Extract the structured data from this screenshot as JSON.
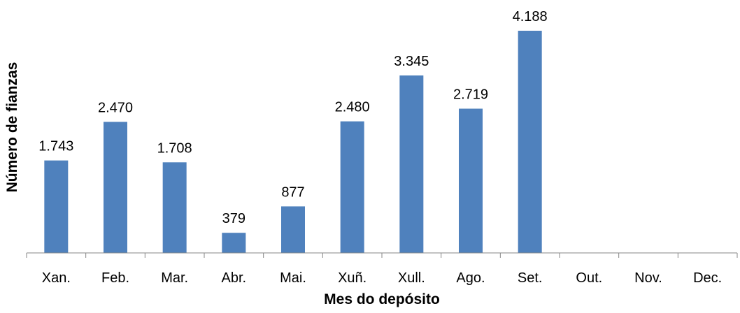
{
  "chart_data": {
    "type": "bar",
    "title": "",
    "xlabel": "Mes do depósito",
    "ylabel": "Número de fianzas",
    "categories": [
      "Xan.",
      "Feb.",
      "Mar.",
      "Abr.",
      "Mai.",
      "Xuñ.",
      "Xull.",
      "Ago.",
      "Set.",
      "Out.",
      "Nov.",
      "Dec."
    ],
    "values": [
      1743,
      2470,
      1708,
      379,
      877,
      2480,
      3345,
      2719,
      4188,
      null,
      null,
      null
    ],
    "data_labels": [
      "1.743",
      "2.470",
      "1.708",
      "379",
      "877",
      "2.480",
      "3.345",
      "2.719",
      "4.188",
      "",
      "",
      ""
    ],
    "ylim": [
      0,
      4200
    ],
    "grid": false,
    "legend": "none",
    "bar_color": "#4f81bd"
  }
}
